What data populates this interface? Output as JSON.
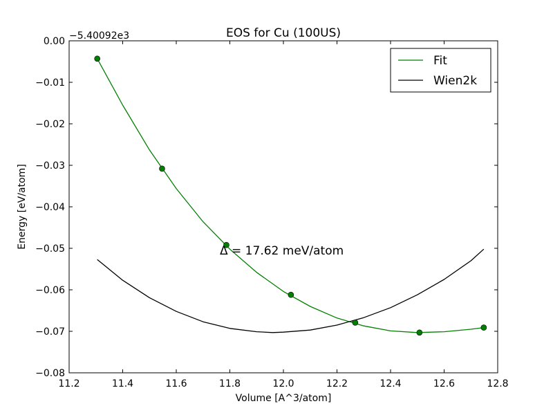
{
  "chart_data": {
    "type": "line",
    "title": "EOS for Cu (100US)",
    "xlabel": "Volume [A^3/atom]",
    "ylabel": "Energy [eV/atom]",
    "y_offset_label": "−5.40092e3",
    "xlim": [
      11.2,
      12.8
    ],
    "ylim": [
      -0.08,
      0.0
    ],
    "xticks": [
      11.2,
      11.4,
      11.6,
      11.8,
      12.0,
      12.2,
      12.4,
      12.6,
      12.8
    ],
    "xtick_labels": [
      "11.2",
      "11.4",
      "11.6",
      "11.8",
      "12.0",
      "12.2",
      "12.4",
      "12.6",
      "12.8"
    ],
    "yticks": [
      0.0,
      -0.01,
      -0.02,
      -0.03,
      -0.04,
      -0.05,
      -0.06,
      -0.07,
      -0.08
    ],
    "ytick_labels": [
      "0.00",
      "−0.01",
      "−0.02",
      "−0.03",
      "−0.04",
      "−0.05",
      "−0.06",
      "−0.07",
      "−0.08"
    ],
    "grid": false,
    "legend_position": "top-right",
    "annotation": "Δ = 17.62 meV/atom",
    "points": {
      "x": [
        11.305,
        11.547,
        11.787,
        12.028,
        12.268,
        12.508,
        12.748
      ],
      "y": [
        -0.0043,
        -0.0308,
        -0.0492,
        -0.0612,
        -0.0679,
        -0.0703,
        -0.0691
      ],
      "color": "#008000"
    },
    "series": [
      {
        "name": "Fit",
        "color": "#008000",
        "x": [
          11.305,
          11.4,
          11.5,
          11.6,
          11.7,
          11.8,
          11.9,
          12.0,
          12.1,
          12.2,
          12.3,
          12.4,
          12.5,
          12.6,
          12.7,
          12.748
        ],
        "y": [
          -0.0043,
          -0.0155,
          -0.0263,
          -0.0356,
          -0.0436,
          -0.0502,
          -0.0558,
          -0.0604,
          -0.064,
          -0.0668,
          -0.0687,
          -0.0699,
          -0.0703,
          -0.0701,
          -0.0695,
          -0.0691
        ]
      },
      {
        "name": "Wien2k",
        "color": "#000000",
        "x": [
          11.305,
          11.4,
          11.5,
          11.6,
          11.7,
          11.8,
          11.9,
          11.96,
          12.0,
          12.1,
          12.2,
          12.3,
          12.4,
          12.5,
          12.6,
          12.7,
          12.748
        ],
        "y": [
          -0.0527,
          -0.0577,
          -0.0619,
          -0.0652,
          -0.0677,
          -0.0693,
          -0.0701,
          -0.0703,
          -0.0702,
          -0.0697,
          -0.0685,
          -0.0667,
          -0.0643,
          -0.0612,
          -0.0575,
          -0.053,
          -0.0502
        ]
      }
    ]
  }
}
